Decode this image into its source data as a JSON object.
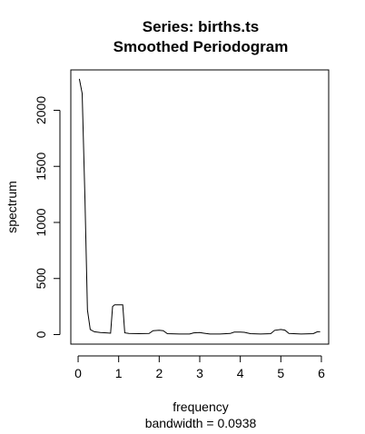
{
  "chart_data": {
    "type": "line",
    "title": "Series: births.ts",
    "subtitle": "Smoothed Periodogram",
    "xlabel": "frequency",
    "xlabel2": "bandwidth = 0.0938",
    "ylabel": "spectrum",
    "xlim": [
      -0.18,
      6.18
    ],
    "ylim": [
      -85,
      2360
    ],
    "xticks": [
      0,
      1,
      2,
      3,
      4,
      5,
      6
    ],
    "yticks": [
      0,
      500,
      1000,
      1500,
      2000
    ],
    "grid": false,
    "x": [
      0.03,
      0.1,
      0.17,
      0.23,
      0.3,
      0.4,
      0.55,
      0.7,
      0.8,
      0.85,
      0.9,
      1.0,
      1.1,
      1.15,
      1.25,
      1.5,
      1.75,
      1.85,
      2.0,
      2.1,
      2.2,
      2.5,
      2.75,
      2.85,
      3.0,
      3.1,
      3.25,
      3.5,
      3.75,
      3.85,
      4.0,
      4.1,
      4.25,
      4.5,
      4.75,
      4.85,
      5.0,
      5.1,
      5.2,
      5.5,
      5.8,
      5.9,
      5.97
    ],
    "series": [
      {
        "values": [
          2280,
          2150,
          1200,
          220,
          45,
          25,
          18,
          15,
          12,
          250,
          265,
          265,
          265,
          15,
          10,
          8,
          10,
          35,
          38,
          35,
          8,
          5,
          5,
          15,
          18,
          12,
          5,
          5,
          10,
          22,
          22,
          20,
          8,
          5,
          8,
          38,
          45,
          40,
          10,
          5,
          8,
          25,
          25
        ]
      }
    ]
  }
}
